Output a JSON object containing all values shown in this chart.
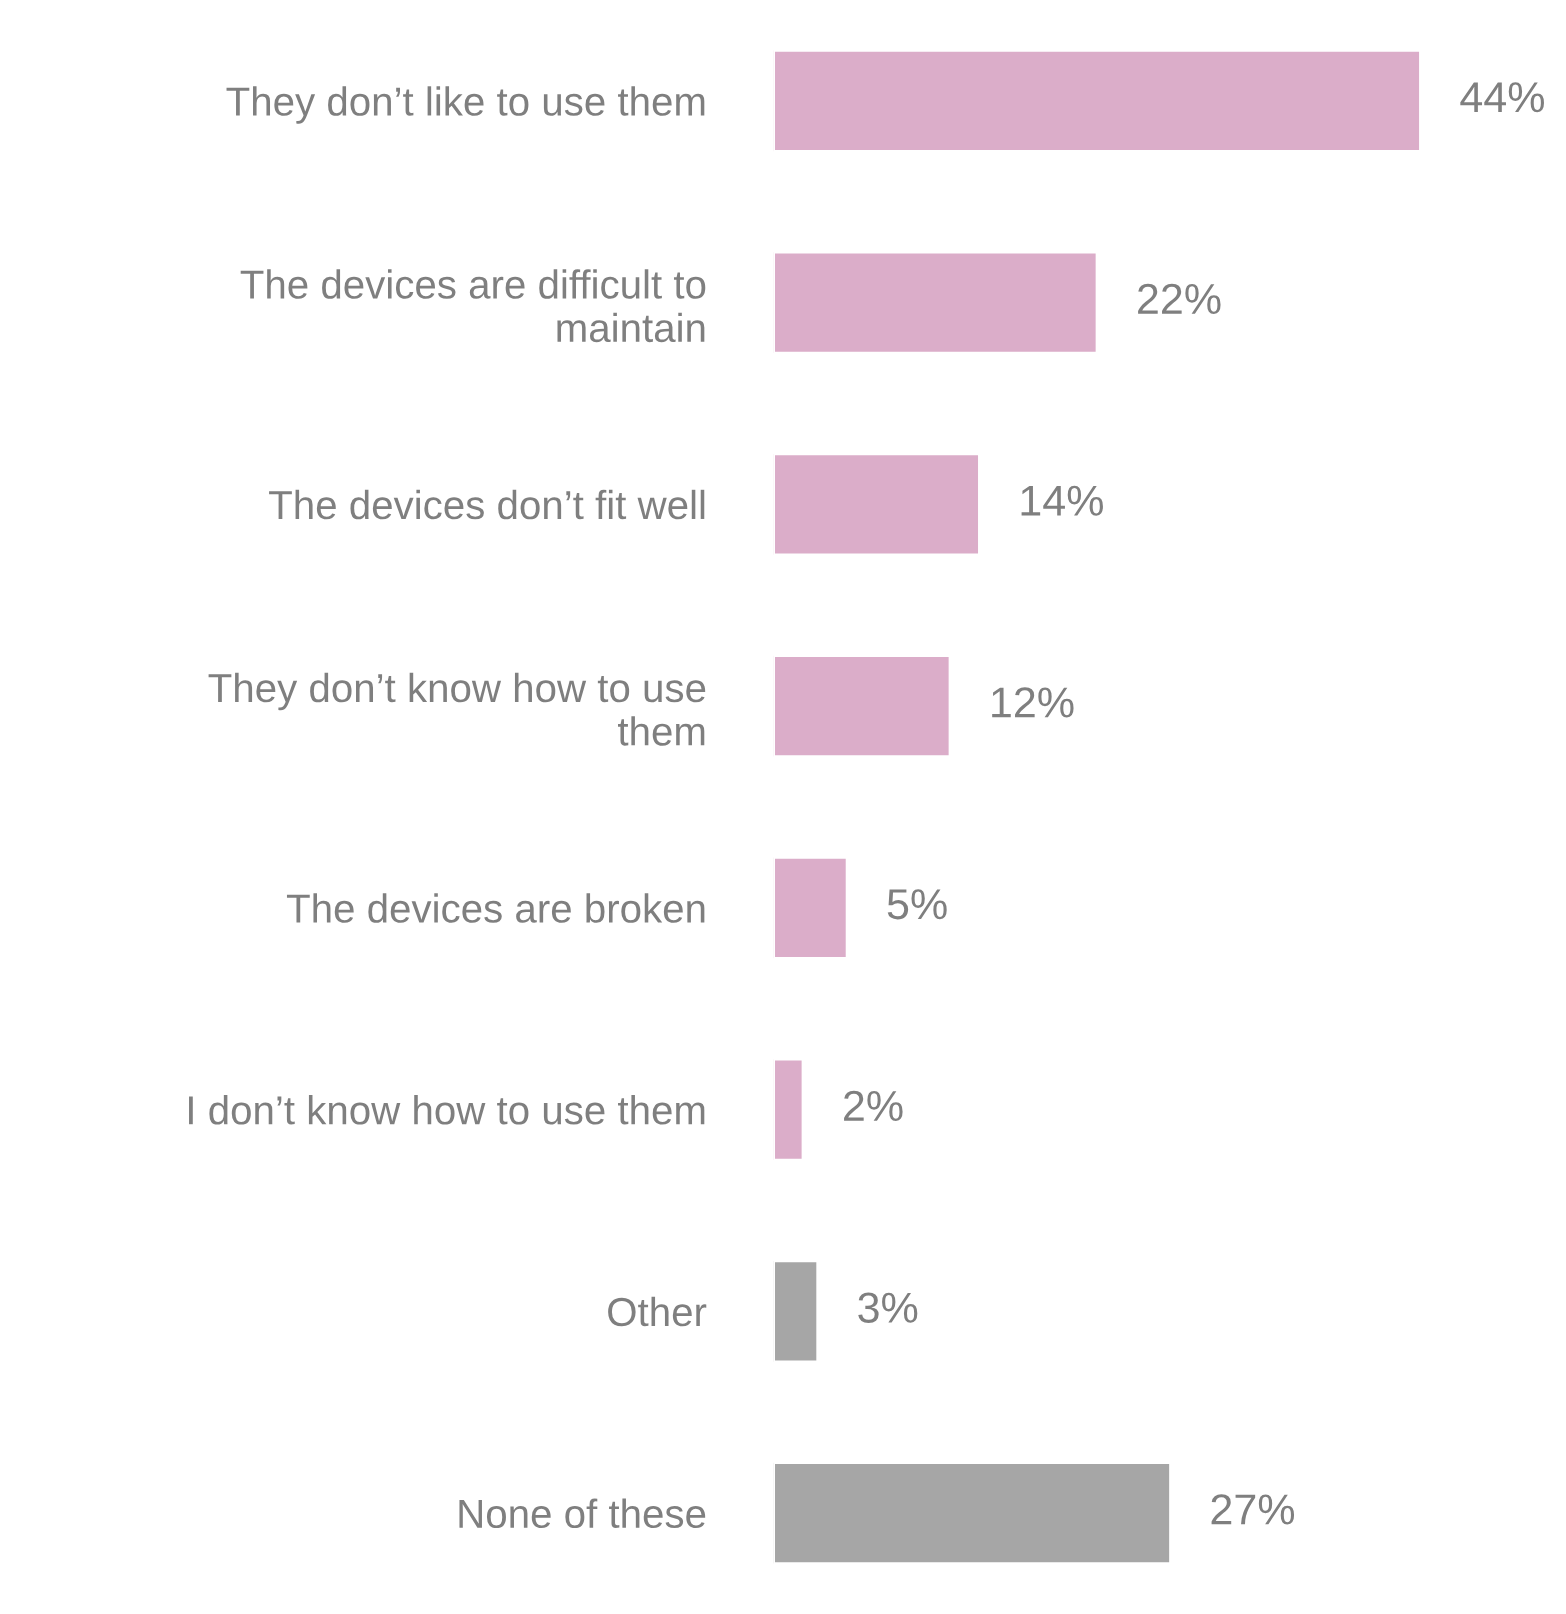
{
  "chart_data": {
    "type": "bar",
    "orientation": "horizontal",
    "categories": [
      "They don’t like to use them",
      "The devices are difficult to\nmaintain",
      "The devices don’t fit well",
      "They don’t know how to use\nthem",
      "The devices are broken",
      "I don’t know how to use them",
      "Other",
      "None of these"
    ],
    "values": [
      44,
      22,
      14,
      12,
      5,
      2,
      3,
      27
    ],
    "colors": [
      "#dbadc9",
      "#dbadc9",
      "#dbadc9",
      "#dbadc9",
      "#dbadc9",
      "#dbadc9",
      "#a6a6a6",
      "#a6a6a6"
    ],
    "value_labels": [
      "44%",
      "22%",
      "14%",
      "12%",
      "5%",
      "2%",
      "3%",
      "27%"
    ]
  }
}
